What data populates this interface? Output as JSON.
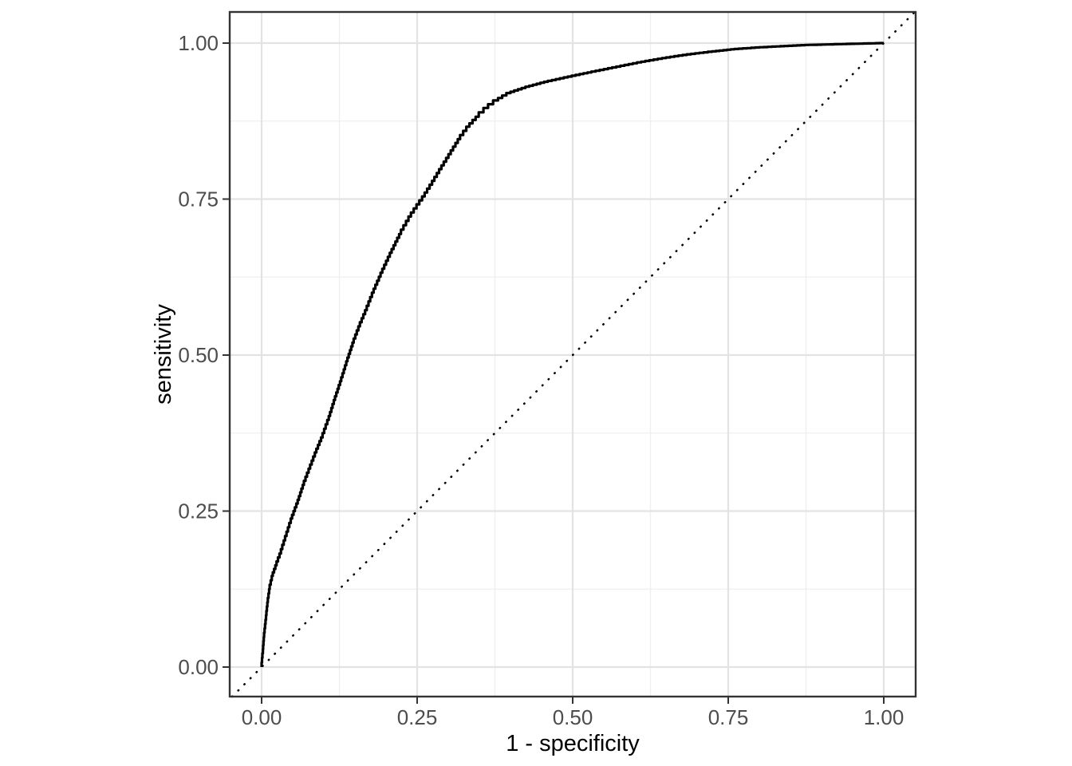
{
  "figure": {
    "background_color": "#ffffff",
    "panel_background_color": "#ffffff",
    "panel_border_color": "#333333",
    "grid_major_color": "#e3e3e3",
    "grid_minor_color": "#efefef",
    "tick_mark_color": "#333333",
    "tick_label_color": "#4d4d4d",
    "axis_title_color": "#000000"
  },
  "chart_data": {
    "type": "line",
    "title": "",
    "xlabel": "1 - specificity",
    "ylabel": "sensitivity",
    "xlim": [
      -0.051,
      1.051
    ],
    "ylim": [
      -0.047,
      1.05
    ],
    "grid": "major and minor gridlines on white panel, black panel border",
    "legend_position": "none",
    "x_ticks": {
      "values": [
        0.0,
        0.25,
        0.5,
        0.75,
        1.0
      ],
      "labels": [
        "0.00",
        "0.25",
        "0.50",
        "0.75",
        "1.00"
      ]
    },
    "y_ticks": {
      "values": [
        0.0,
        0.25,
        0.5,
        0.75,
        1.0
      ],
      "labels": [
        "0.00",
        "0.25",
        "0.50",
        "0.75",
        "1.00"
      ]
    },
    "minor_ticks": [
      0.125,
      0.375,
      0.625,
      0.875
    ],
    "series": [
      {
        "name": "ROC curve",
        "style": "solid",
        "color": "#000000",
        "line_width": 3.2,
        "draw": "empirical staircase",
        "points": [
          [
            0.0,
            0.0
          ],
          [
            0.002,
            0.022
          ],
          [
            0.004,
            0.048
          ],
          [
            0.007,
            0.076
          ],
          [
            0.01,
            0.104
          ],
          [
            0.013,
            0.125
          ],
          [
            0.018,
            0.146
          ],
          [
            0.024,
            0.163
          ],
          [
            0.031,
            0.182
          ],
          [
            0.04,
            0.21
          ],
          [
            0.049,
            0.238
          ],
          [
            0.058,
            0.262
          ],
          [
            0.068,
            0.292
          ],
          [
            0.078,
            0.318
          ],
          [
            0.088,
            0.344
          ],
          [
            0.098,
            0.368
          ],
          [
            0.108,
            0.396
          ],
          [
            0.118,
            0.428
          ],
          [
            0.128,
            0.458
          ],
          [
            0.138,
            0.49
          ],
          [
            0.148,
            0.52
          ],
          [
            0.158,
            0.546
          ],
          [
            0.169,
            0.572
          ],
          [
            0.18,
            0.6
          ],
          [
            0.194,
            0.632
          ],
          [
            0.209,
            0.664
          ],
          [
            0.224,
            0.694
          ],
          [
            0.24,
            0.722
          ],
          [
            0.258,
            0.748
          ],
          [
            0.274,
            0.773
          ],
          [
            0.289,
            0.798
          ],
          [
            0.304,
            0.822
          ],
          [
            0.319,
            0.846
          ],
          [
            0.334,
            0.866
          ],
          [
            0.349,
            0.882
          ],
          [
            0.364,
            0.896
          ],
          [
            0.38,
            0.908
          ],
          [
            0.4,
            0.92
          ],
          [
            0.43,
            0.93
          ],
          [
            0.46,
            0.938
          ],
          [
            0.492,
            0.945
          ],
          [
            0.53,
            0.953
          ],
          [
            0.57,
            0.961
          ],
          [
            0.61,
            0.969
          ],
          [
            0.65,
            0.976
          ],
          [
            0.69,
            0.982
          ],
          [
            0.724,
            0.986
          ],
          [
            0.76,
            0.99
          ],
          [
            0.8,
            0.993
          ],
          [
            0.84,
            0.995
          ],
          [
            0.88,
            0.997
          ],
          [
            0.92,
            0.998
          ],
          [
            0.96,
            0.999
          ],
          [
            1.0,
            1.0
          ]
        ]
      },
      {
        "name": "chance diagonal",
        "style": "dotted",
        "color": "#000000",
        "line_width": 2.6,
        "draw": "abline slope 1 intercept 0, clipped to panel",
        "points": [
          [
            0,
            0
          ],
          [
            1,
            1
          ]
        ]
      }
    ]
  }
}
